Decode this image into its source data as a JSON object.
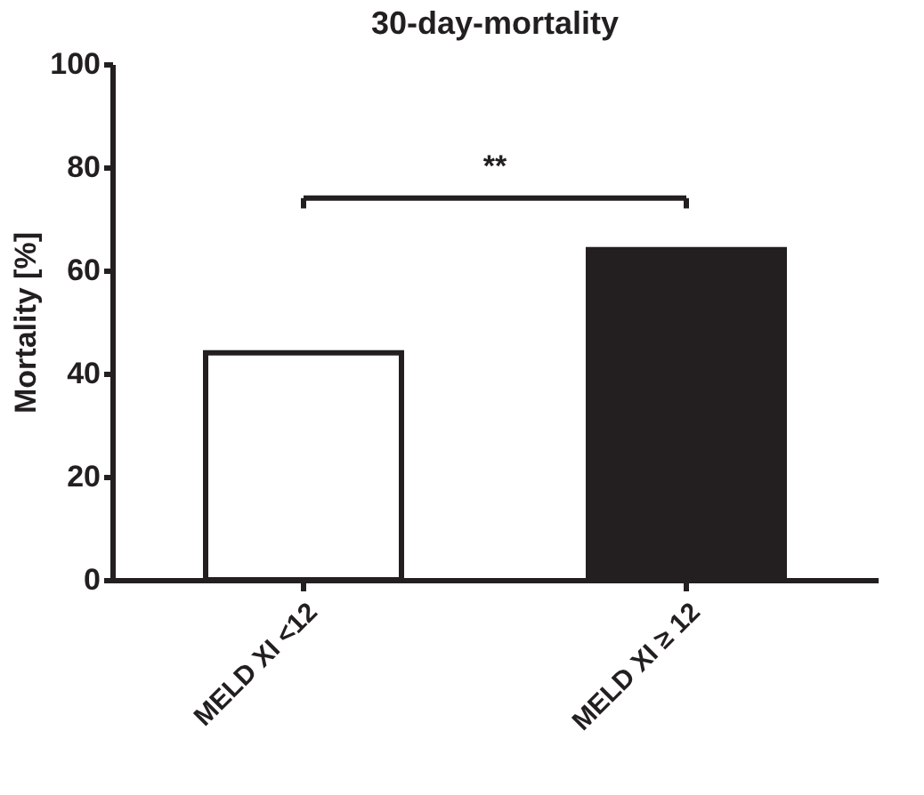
{
  "chart_data": {
    "type": "bar",
    "title": "30-day-mortality",
    "ylabel": "Mortality [%]",
    "categories": [
      "MELD XI <12",
      "MELD XI ≥ 12"
    ],
    "values": [
      44,
      64
    ],
    "colors": [
      "#ffffff",
      "#231f20"
    ],
    "ylim": [
      0,
      100
    ],
    "yticks": [
      0,
      20,
      40,
      60,
      80,
      100
    ],
    "annotations": [
      "**"
    ],
    "grid": false
  }
}
